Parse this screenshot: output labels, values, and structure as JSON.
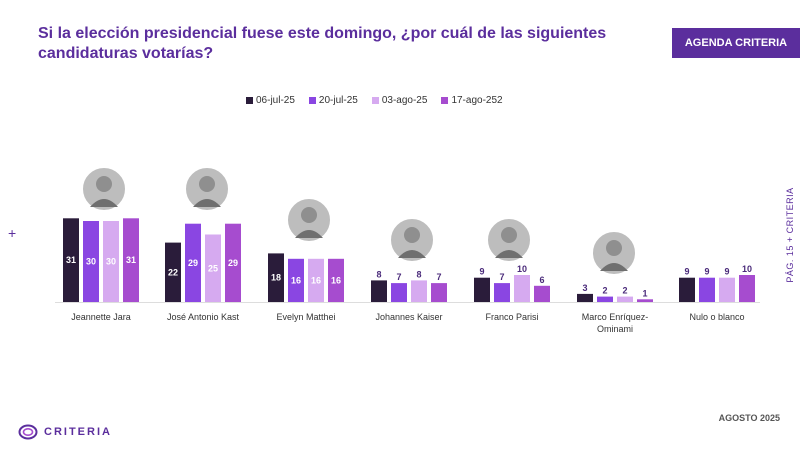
{
  "header": {
    "title": "Si la elección presidencial fuese este domingo, ¿por cuál de las siguientes candidaturas votarías?",
    "badge": "AGENDA CRITERIA"
  },
  "side": {
    "plus_left": "+",
    "page_text": "PÁG. 15  +  CRITERIA"
  },
  "footer": {
    "date": "AGOSTO 2025",
    "logo_text": "CRITERIA"
  },
  "colors": {
    "series": [
      "#2a1c3a",
      "#8a46e2",
      "#d6aaf0",
      "#a64ccf"
    ],
    "brand": "#5b2e9d"
  },
  "chart_data": {
    "type": "bar",
    "title": "Si la elección presidencial fuese este domingo, ¿por cuál de las siguientes candidaturas votarías?",
    "categories": [
      [
        "Jeannette Jara"
      ],
      [
        "José Antonio Kast"
      ],
      [
        "Evelyn Matthei"
      ],
      [
        "Johannes Kaiser"
      ],
      [
        "Franco Parisi"
      ],
      [
        "Marco Enríquez-",
        "Ominami"
      ],
      [
        "Nulo o blanco"
      ]
    ],
    "series": [
      {
        "name": "06-jul-25",
        "values": [
          31,
          22,
          18,
          8,
          9,
          3,
          9
        ]
      },
      {
        "name": "20-jul-25",
        "values": [
          30,
          29,
          16,
          7,
          7,
          2,
          9
        ]
      },
      {
        "name": "03-ago-25",
        "values": [
          30,
          25,
          16,
          8,
          10,
          2,
          9
        ]
      },
      {
        "name": "17-ago-252",
        "values": [
          31,
          29,
          16,
          7,
          6,
          1,
          10
        ]
      }
    ],
    "legend_position": "top",
    "grid": false
  }
}
